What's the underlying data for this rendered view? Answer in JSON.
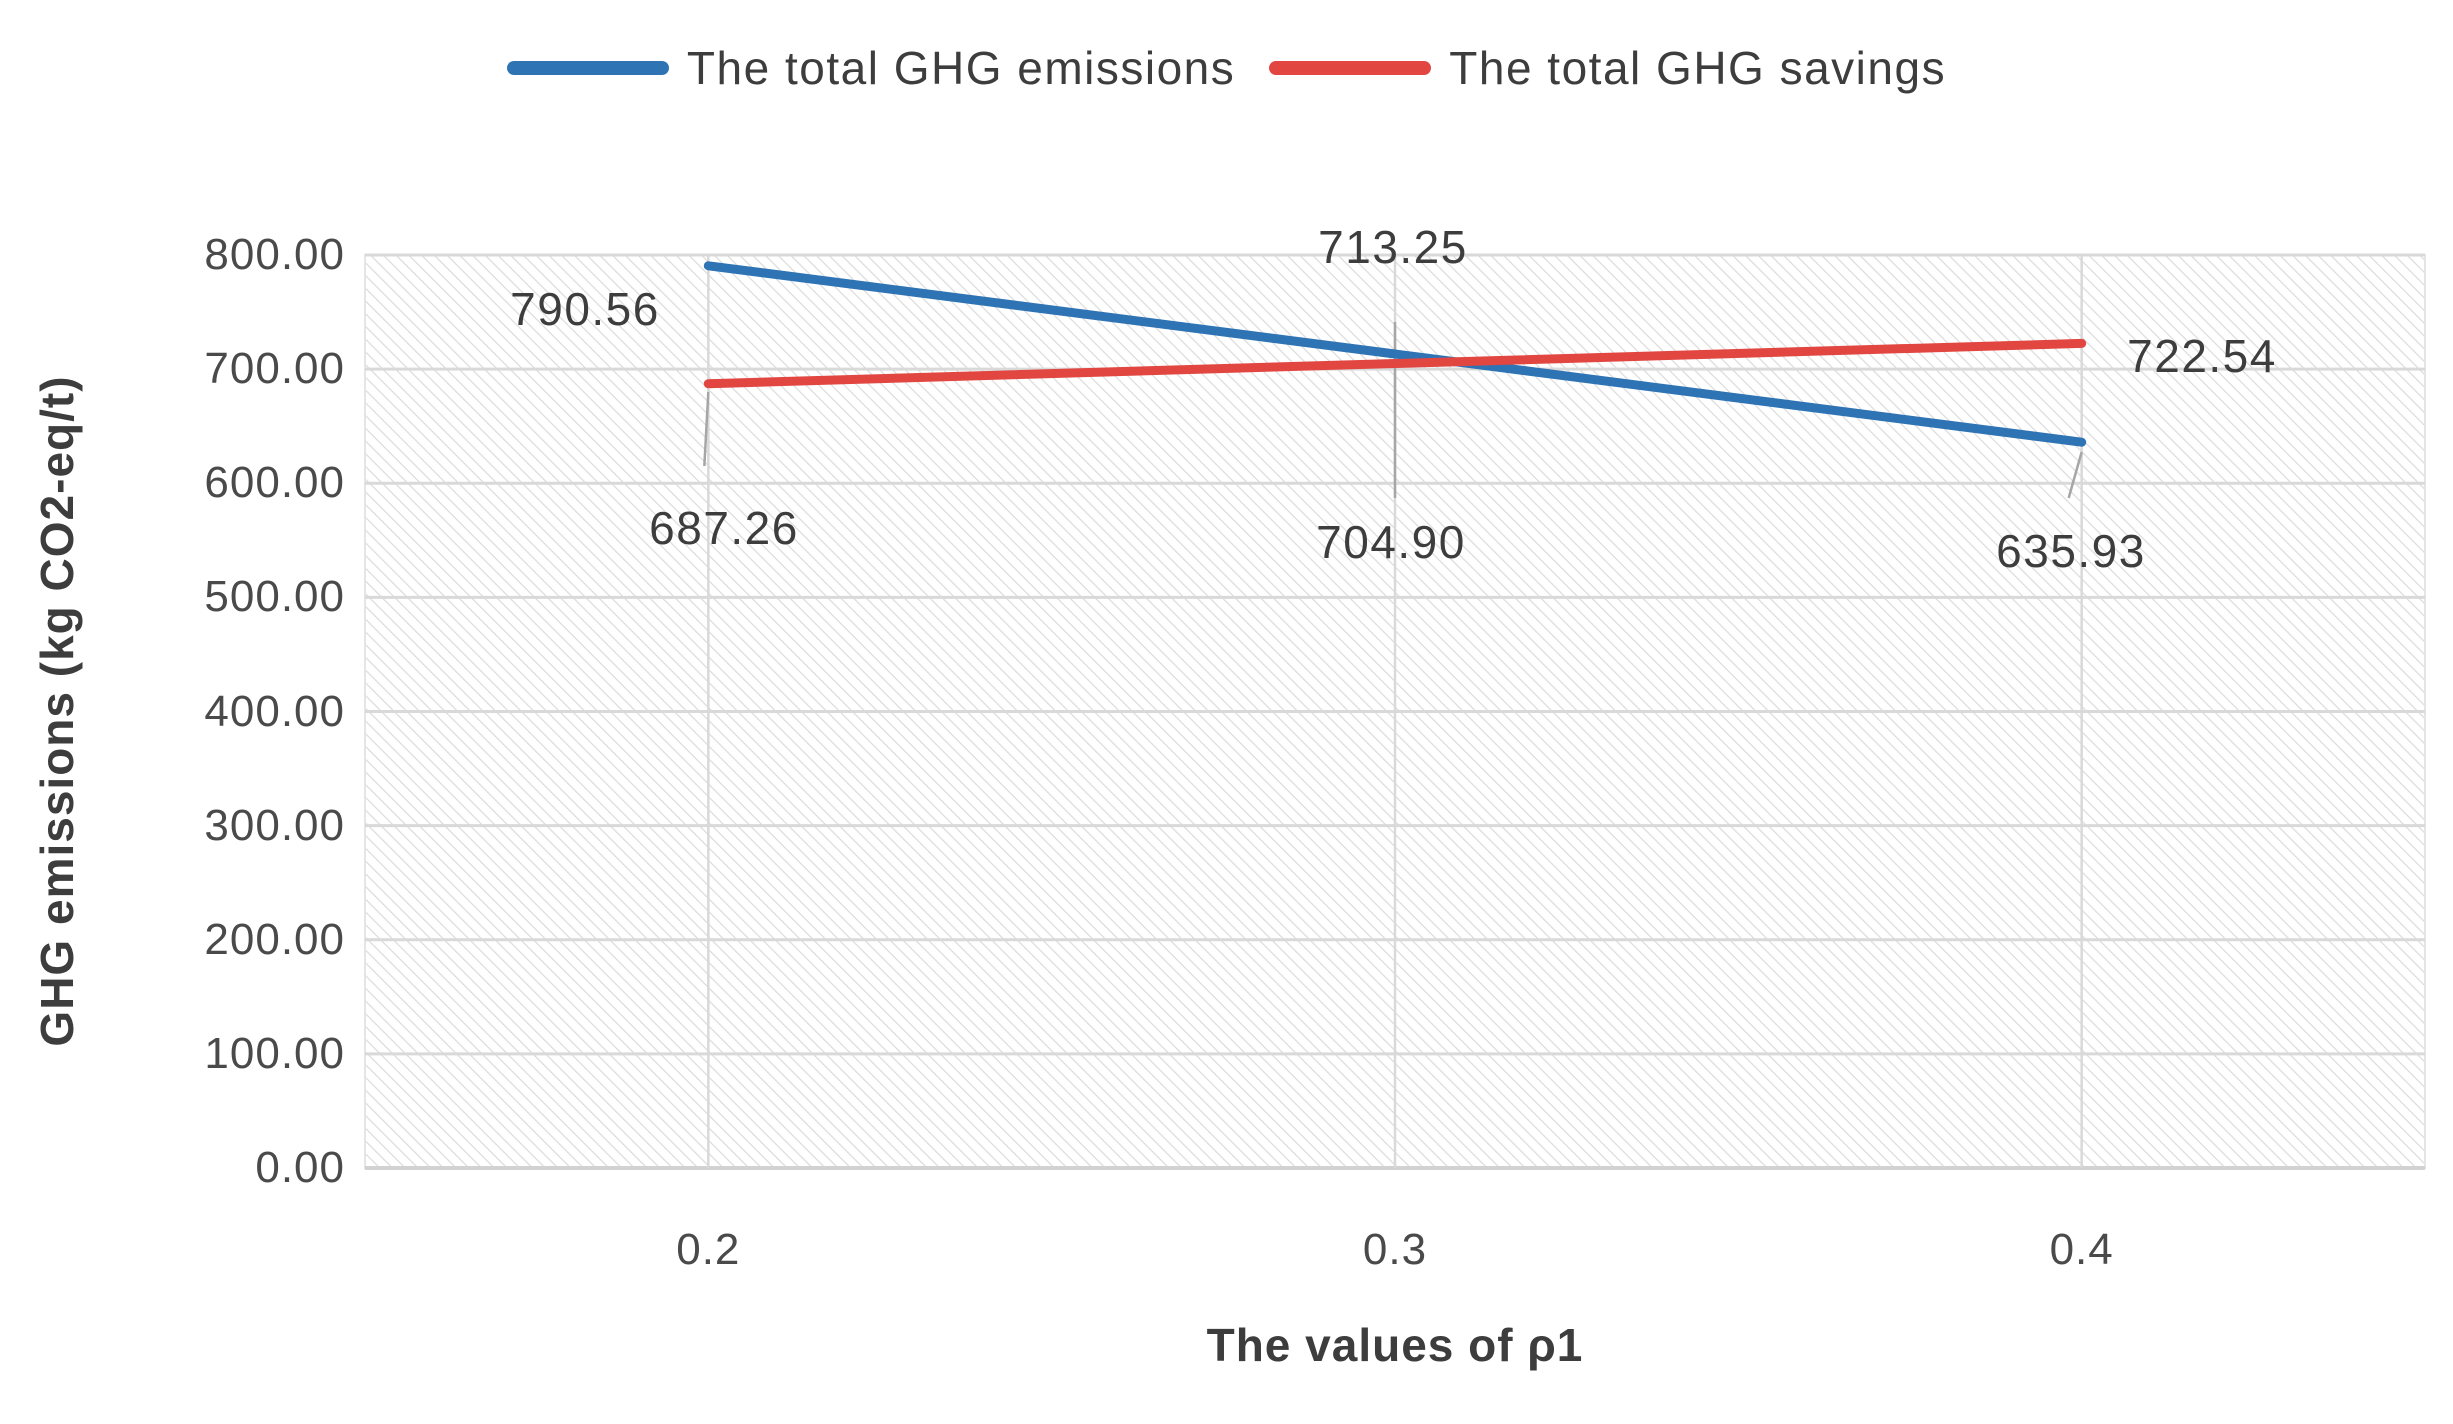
{
  "chart_data": {
    "type": "line",
    "title": "",
    "xlabel": "The values of ρ1",
    "ylabel": "GHG emissions (kg CO2-eq/t)",
    "categories": [
      "0.2",
      "0.3",
      "0.4"
    ],
    "x_values": [
      0.2,
      0.3,
      0.4
    ],
    "ylim": [
      0,
      800
    ],
    "ytick_step": 100,
    "ytick_labels": [
      "0.00",
      "100.00",
      "200.00",
      "300.00",
      "400.00",
      "500.00",
      "600.00",
      "700.00",
      "800.00"
    ],
    "grid": true,
    "legend_position": "top-center",
    "plot_background": "light diagonal hatch pattern",
    "series": [
      {
        "name": "The total GHG emissions",
        "color": "#2E74B5",
        "values": [
          790.56,
          713.25,
          635.93
        ],
        "labels": [
          "790.56",
          "713.25",
          "635.93"
        ]
      },
      {
        "name": "The total GHG savings",
        "color": "#E24640",
        "values": [
          687.26,
          704.9,
          722.54
        ],
        "labels": [
          "687.26",
          "704.90",
          "722.54"
        ]
      }
    ]
  },
  "colors": {
    "background": "#FFFFFF",
    "gridline": "#D9D9D9",
    "plot_border": "#E5E5E5",
    "axis_line": "#D2D2D2",
    "hatch": "#DBDBDB",
    "leader": "#A6A6A6",
    "text": "#3D3D3D",
    "tick_text": "#4A4A4A"
  }
}
